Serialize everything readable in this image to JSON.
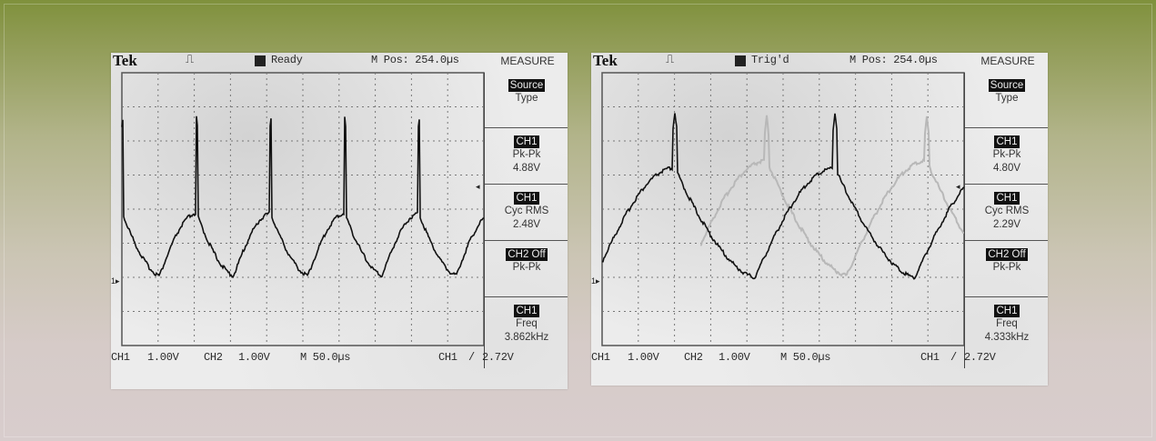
{
  "screens": [
    {
      "brand": "Tek",
      "status": "Ready",
      "mpos": "M Pos: 254.0µs",
      "menu_title": "MEASURE",
      "menu": [
        {
          "hl": "Source",
          "line1": "Type",
          "line2": ""
        },
        {
          "hl": "CH1",
          "line1": "Pk-Pk",
          "line2": "4.88V"
        },
        {
          "hl": "CH1",
          "line1": "Cyc RMS",
          "line2": "2.48V"
        },
        {
          "hl": "CH2 Off",
          "line1": "Pk-Pk",
          "line2": ""
        },
        {
          "hl": "CH1",
          "line1": "Freq",
          "line2": "3.862kHz"
        }
      ],
      "footer": {
        "ch1": "CH1",
        "ch1_scale": "1.00V",
        "ch2": "CH2",
        "ch2_scale": "1.00V",
        "time": "M 50.0µs",
        "trig_ch": "CH1",
        "trig_slope": "/",
        "trig_level": "2.72V"
      },
      "ground_marker": "1▸",
      "trig_marker": "◂"
    },
    {
      "brand": "Tek",
      "status": "Trig'd",
      "mpos": "M Pos: 254.0µs",
      "menu_title": "MEASURE",
      "menu": [
        {
          "hl": "Source",
          "line1": "Type",
          "line2": ""
        },
        {
          "hl": "CH1",
          "line1": "Pk-Pk",
          "line2": "4.80V"
        },
        {
          "hl": "CH1",
          "line1": "Cyc RMS",
          "line2": "2.29V"
        },
        {
          "hl": "CH2 Off",
          "line1": "Pk-Pk",
          "line2": ""
        },
        {
          "hl": "CH1",
          "line1": "Freq",
          "line2": "4.333kHz"
        }
      ],
      "footer": {
        "ch1": "CH1",
        "ch1_scale": "1.00V",
        "ch2": "CH2",
        "ch2_scale": "1.00V",
        "time": "M 50.0µs",
        "trig_ch": "CH1",
        "trig_slope": "/",
        "trig_level": "2.72V"
      },
      "ground_marker": "1▸",
      "trig_marker": "◂"
    }
  ],
  "colors": {
    "trace": "#111111",
    "ghost": "#b8b8b8",
    "grid": "#777777"
  }
}
